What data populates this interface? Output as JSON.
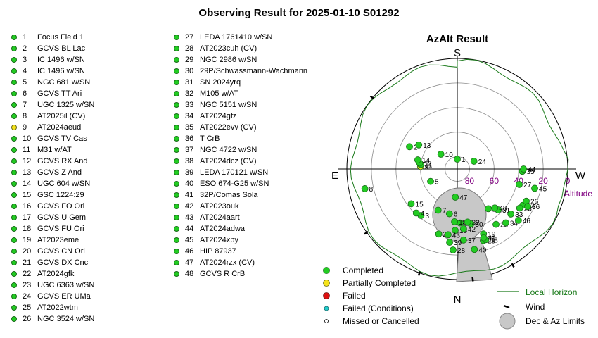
{
  "page_title": "Observing Result for 2025-01-10 S01292",
  "colors": {
    "completed": "#22cc22",
    "partially_completed": "#f5e31a",
    "failed": "#dd1111",
    "failed_conditions": "#22cccc",
    "missed": "#ffffff",
    "horizon": "#1a7a1a",
    "altitude_labels": "#800080",
    "limits_fill": "#c8c8c8"
  },
  "targets_col1": [
    {
      "num": "1",
      "name": "Focus Field 1",
      "status": "completed"
    },
    {
      "num": "2",
      "name": "GCVS BL Lac",
      "status": "completed"
    },
    {
      "num": "3",
      "name": "IC 1496 w/SN",
      "status": "completed"
    },
    {
      "num": "4",
      "name": "IC 1496 w/SN",
      "status": "completed"
    },
    {
      "num": "5",
      "name": "NGC 681 w/SN",
      "status": "completed"
    },
    {
      "num": "6",
      "name": "GCVS TT Ari",
      "status": "completed"
    },
    {
      "num": "7",
      "name": "UGC 1325 w/SN",
      "status": "completed"
    },
    {
      "num": "8",
      "name": "AT2025il (CV)",
      "status": "completed"
    },
    {
      "num": "9",
      "name": "AT2024aeud",
      "status": "partially_completed"
    },
    {
      "num": "10",
      "name": "GCVS TV Cas",
      "status": "completed"
    },
    {
      "num": "11",
      "name": "M31 w/AT",
      "status": "completed"
    },
    {
      "num": "12",
      "name": "GCVS RX And",
      "status": "completed"
    },
    {
      "num": "13",
      "name": "GCVS Z And",
      "status": "completed"
    },
    {
      "num": "14",
      "name": "UGC 604 w/SN",
      "status": "completed"
    },
    {
      "num": "15",
      "name": "GSC 1224:29",
      "status": "completed"
    },
    {
      "num": "16",
      "name": "GCVS FO Ori",
      "status": "completed"
    },
    {
      "num": "17",
      "name": "GCVS U Gem",
      "status": "completed"
    },
    {
      "num": "18",
      "name": "GCVS FU Ori",
      "status": "completed"
    },
    {
      "num": "19",
      "name": "AT2023eme",
      "status": "completed"
    },
    {
      "num": "20",
      "name": "GCVS CN Ori",
      "status": "completed"
    },
    {
      "num": "21",
      "name": "GCVS DX Cnc",
      "status": "completed"
    },
    {
      "num": "22",
      "name": "AT2024gfk",
      "status": "completed"
    },
    {
      "num": "23",
      "name": "UGC 6363 w/SN",
      "status": "completed"
    },
    {
      "num": "24",
      "name": "GCVS ER UMa",
      "status": "completed"
    },
    {
      "num": "25",
      "name": "AT2022wtm",
      "status": "completed"
    },
    {
      "num": "26",
      "name": "NGC 3524 w/SN",
      "status": "completed"
    }
  ],
  "targets_col2": [
    {
      "num": "27",
      "name": "LEDA 1761410 w/SN",
      "status": "completed"
    },
    {
      "num": "28",
      "name": "AT2023cuh (CV)",
      "status": "completed"
    },
    {
      "num": "29",
      "name": "NGC 2986 w/SN",
      "status": "completed"
    },
    {
      "num": "30",
      "name": "29P/Schwassmann-Wachmann",
      "status": "completed"
    },
    {
      "num": "31",
      "name": "SN 2024yrq",
      "status": "completed"
    },
    {
      "num": "32",
      "name": "M105 w/AT",
      "status": "completed"
    },
    {
      "num": "33",
      "name": "NGC 5151 w/SN",
      "status": "completed"
    },
    {
      "num": "34",
      "name": "AT2024gfz",
      "status": "completed"
    },
    {
      "num": "35",
      "name": "AT2022evv (CV)",
      "status": "completed"
    },
    {
      "num": "36",
      "name": "T CrB",
      "status": "completed"
    },
    {
      "num": "37",
      "name": "NGC 4722 w/SN",
      "status": "completed"
    },
    {
      "num": "38",
      "name": "AT2024dcz (CV)",
      "status": "completed"
    },
    {
      "num": "39",
      "name": "LEDA 170121 w/SN",
      "status": "completed"
    },
    {
      "num": "40",
      "name": "ESO 674-G25 w/SN",
      "status": "completed"
    },
    {
      "num": "41",
      "name": "32P/Comas Sola",
      "status": "completed"
    },
    {
      "num": "42",
      "name": "AT2023ouk",
      "status": "completed"
    },
    {
      "num": "43",
      "name": "AT2024aart",
      "status": "completed"
    },
    {
      "num": "44",
      "name": "AT2024adwa",
      "status": "completed"
    },
    {
      "num": "45",
      "name": "AT2024xpy",
      "status": "completed"
    },
    {
      "num": "46",
      "name": "HIP 87937",
      "status": "completed"
    },
    {
      "num": "47",
      "name": "AT2024rzx (CV)",
      "status": "completed"
    },
    {
      "num": "48",
      "name": "GCVS R CrB",
      "status": "completed"
    }
  ],
  "chart_data": {
    "type": "scatter",
    "title": "AzAlt Result",
    "projection": "polar-altaz",
    "compass": {
      "top": "S",
      "bottom": "N",
      "left": "E",
      "right": "W"
    },
    "altitude_axis_label": "Altitude",
    "altitude_ticks": [
      "0",
      "20",
      "40",
      "60",
      "80"
    ],
    "altitude_tick_values": [
      0,
      20,
      40,
      60,
      80
    ],
    "grid": true,
    "points": [
      {
        "label": "1",
        "az": 0,
        "alt": 82
      },
      {
        "label": "2",
        "az": 295,
        "alt": 47
      },
      {
        "label": "3",
        "az": 218,
        "alt": 42
      },
      {
        "label": "4",
        "az": 223,
        "alt": 41
      },
      {
        "label": "5",
        "az": 245,
        "alt": 66
      },
      {
        "label": "6",
        "az": 190,
        "alt": 53
      },
      {
        "label": "7",
        "az": 205,
        "alt": 53
      },
      {
        "label": "8",
        "az": 258,
        "alt": 13
      },
      {
        "label": "9",
        "az": 274,
        "alt": 60
      },
      {
        "label": "10",
        "az": 312,
        "alt": 72
      },
      {
        "label": "11",
        "az": 277,
        "alt": 60
      },
      {
        "label": "12",
        "az": 279,
        "alt": 59
      },
      {
        "label": "13",
        "az": 302,
        "alt": 53
      },
      {
        "label": "14",
        "az": 283,
        "alt": 57
      },
      {
        "label": "15",
        "az": 233,
        "alt": 43
      },
      {
        "label": "16",
        "az": 182,
        "alt": 40
      },
      {
        "label": "17",
        "az": 177,
        "alt": 46
      },
      {
        "label": "18",
        "az": 183,
        "alt": 47
      },
      {
        "label": "19",
        "az": 158,
        "alt": 33
      },
      {
        "label": "20",
        "az": 196,
        "alt": 35
      },
      {
        "label": "21",
        "az": 142,
        "alt": 49
      },
      {
        "label": "22",
        "az": 119,
        "alt": 29
      },
      {
        "label": "23",
        "az": 122,
        "alt": 30
      },
      {
        "label": "24",
        "az": 65,
        "alt": 75
      },
      {
        "label": "25",
        "az": 145,
        "alt": 35
      },
      {
        "label": "26",
        "az": 115,
        "alt": 28
      },
      {
        "label": "27",
        "az": 104,
        "alt": 38
      },
      {
        "label": "28",
        "az": 183,
        "alt": 24
      },
      {
        "label": "29",
        "az": 160,
        "alt": 28
      },
      {
        "label": "30",
        "az": 166,
        "alt": 44
      },
      {
        "label": "31",
        "az": 135,
        "alt": 43
      },
      {
        "label": "32",
        "az": 169,
        "alt": 46
      },
      {
        "label": "33",
        "az": 130,
        "alt": 33
      },
      {
        "label": "34",
        "az": 138,
        "alt": 31
      },
      {
        "label": "35",
        "az": 92,
        "alt": 37
      },
      {
        "label": "36",
        "az": 118,
        "alt": 25
      },
      {
        "label": "37",
        "az": 175,
        "alt": 32
      },
      {
        "label": "38",
        "az": 158,
        "alt": 28
      },
      {
        "label": "39",
        "az": 186,
        "alt": 30
      },
      {
        "label": "40",
        "az": 168,
        "alt": 23
      },
      {
        "label": "41",
        "az": 159,
        "alt": 30
      },
      {
        "label": "42",
        "az": 174,
        "alt": 41
      },
      {
        "label": "43",
        "az": 188,
        "alt": 36
      },
      {
        "label": "44",
        "az": 90,
        "alt": 36
      },
      {
        "label": "45",
        "az": 104,
        "alt": 25
      },
      {
        "label": "46",
        "az": 130,
        "alt": 25
      },
      {
        "label": "47",
        "az": 184,
        "alt": 67
      },
      {
        "label": "48",
        "az": 136,
        "alt": 46
      }
    ],
    "legend": {
      "completed": "Completed",
      "partially_completed": "Partially Completed",
      "failed": "Failed",
      "failed_conditions": "Failed (Conditions)",
      "missed": "Missed or Cancelled",
      "local_horizon": "Local Horizon",
      "wind": "Wind",
      "limits": "Dec & Az Limits"
    }
  }
}
